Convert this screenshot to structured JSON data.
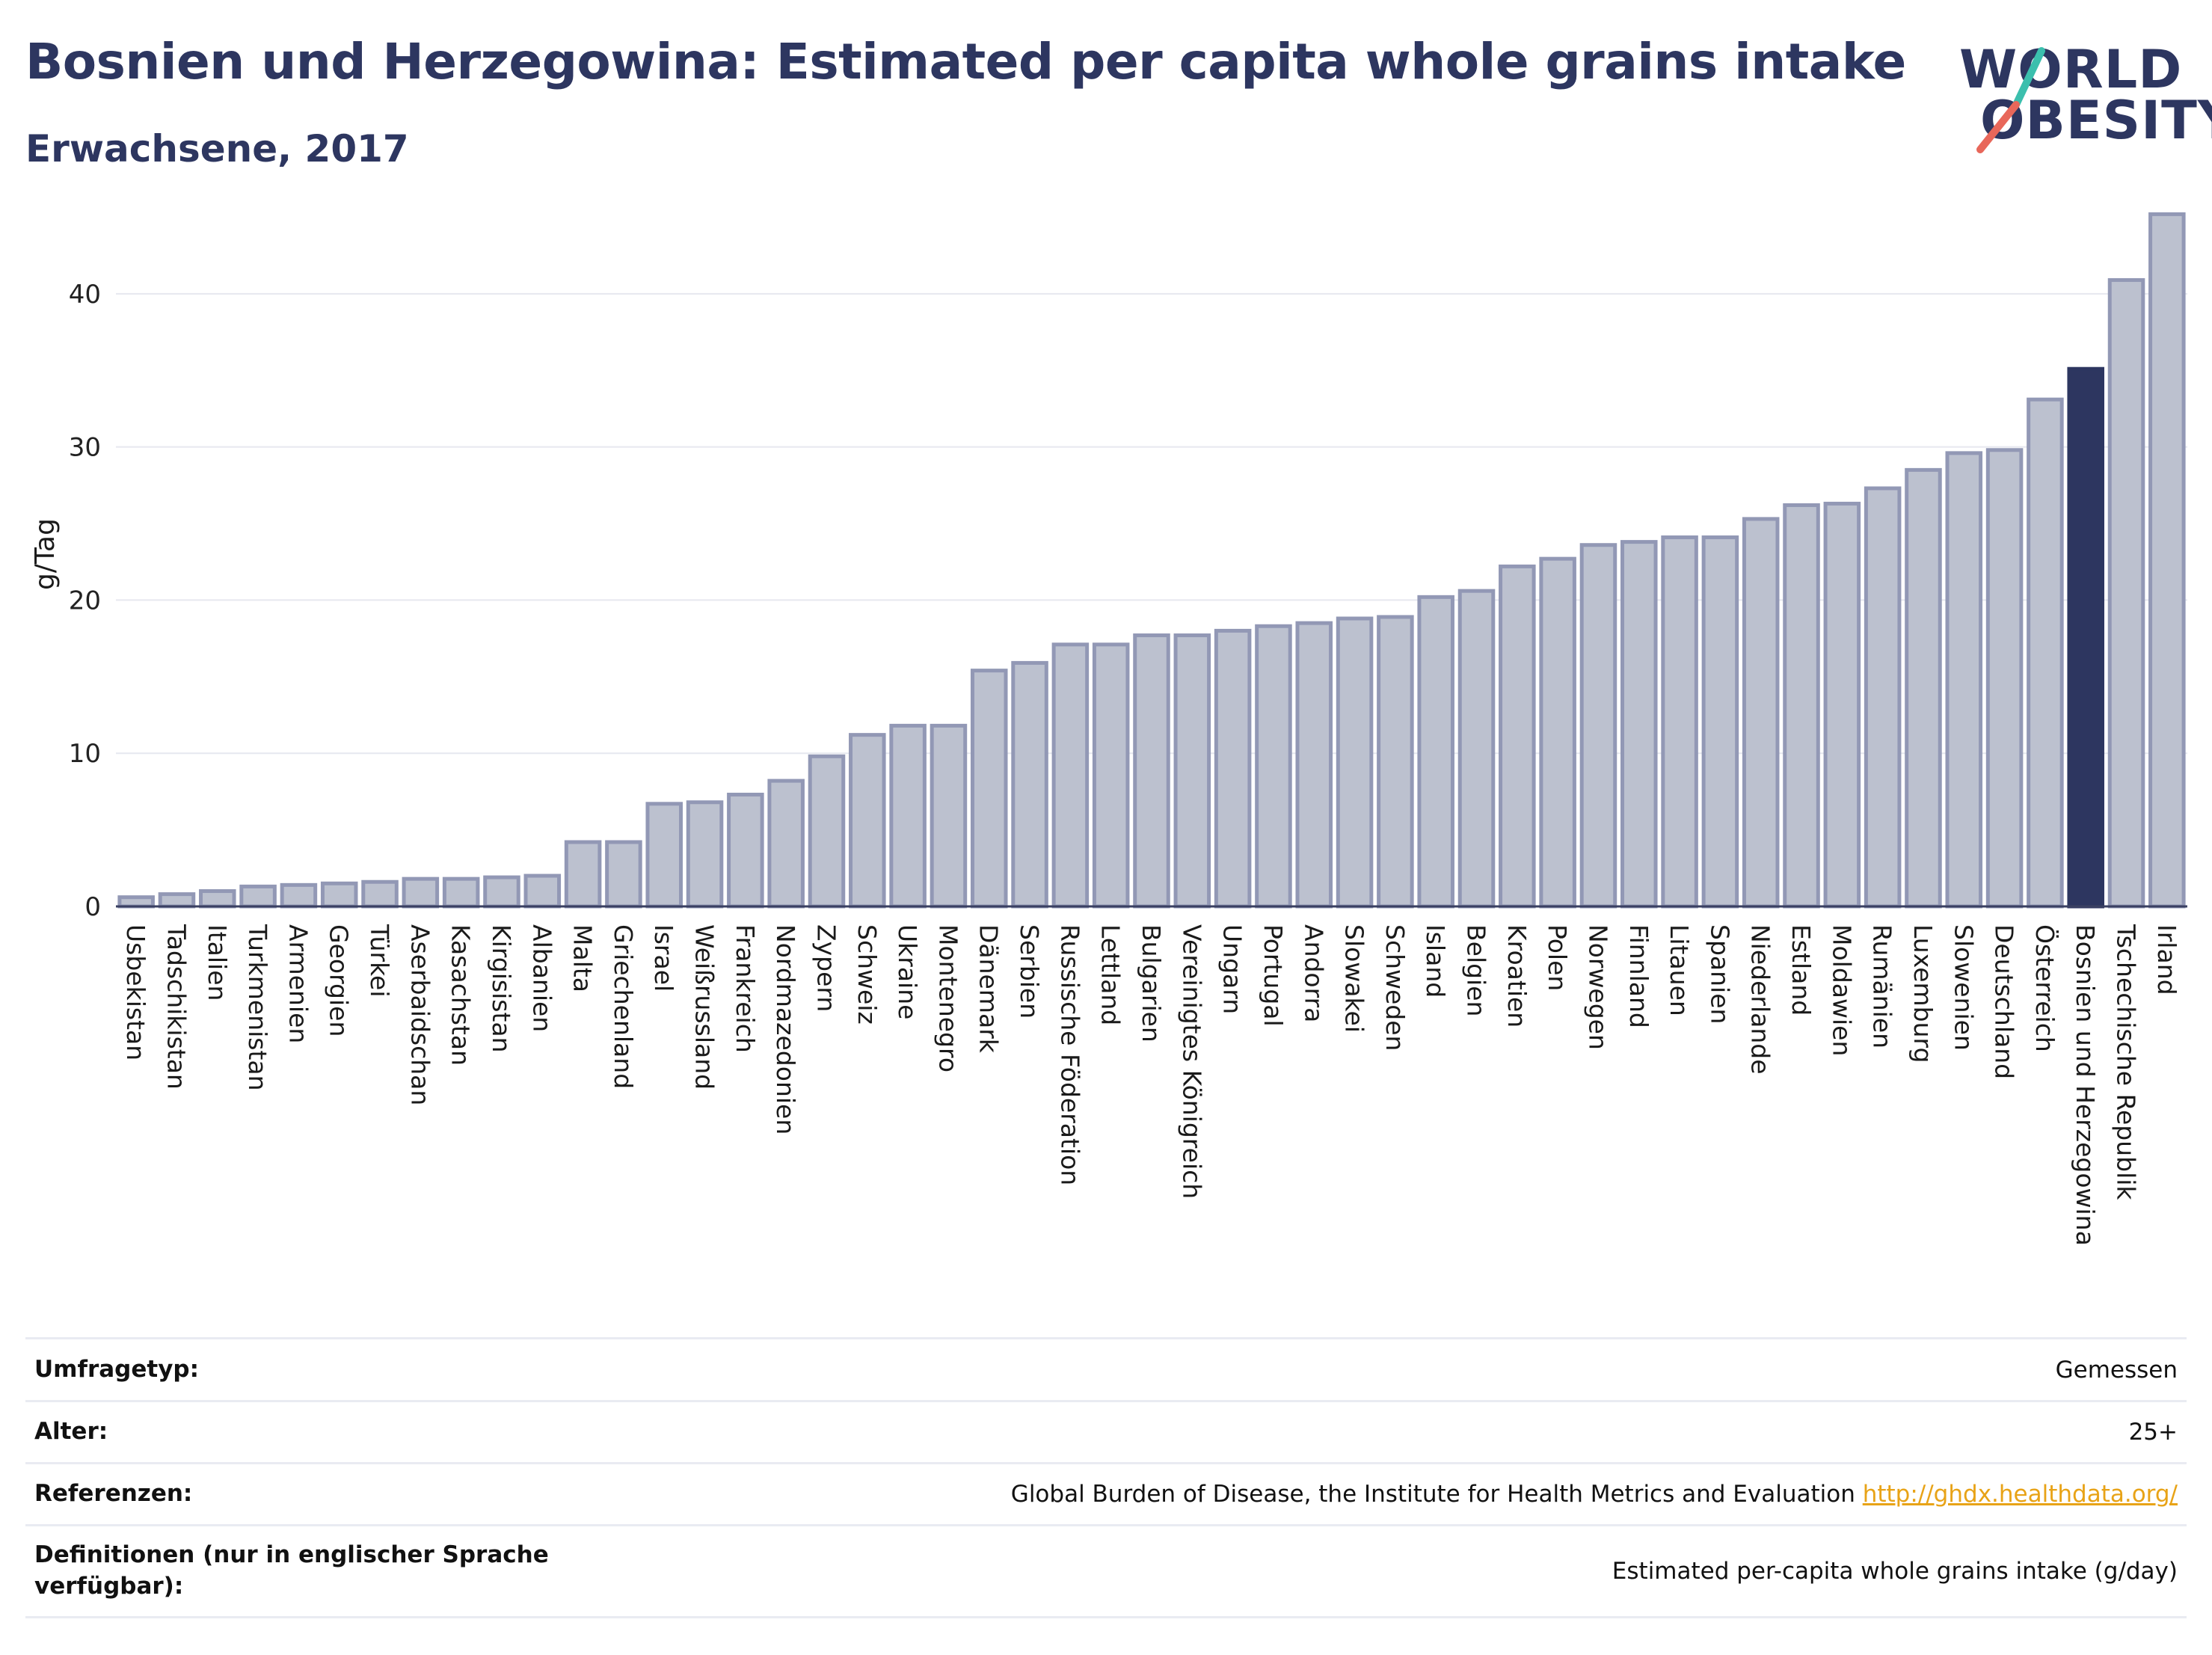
{
  "header": {
    "title": "Bosnien und Herzegowina: Estimated per capita whole grains intake",
    "subtitle": "Erwachsene, 2017"
  },
  "logo": {
    "line1": "WORLD",
    "line2": "OBESITY",
    "accent_teal": "#3bbfad",
    "accent_red": "#e8675a"
  },
  "chart_data": {
    "type": "bar",
    "ylabel": "g/Tag",
    "ylim": [
      0,
      46
    ],
    "yticks": [
      0,
      10,
      20,
      30,
      40
    ],
    "grid": true,
    "highlight": "Bosnien und Herzegowina",
    "colors": {
      "bar": "#bcc1cf",
      "bar_border": "#9298b5",
      "highlight": "#2d3660",
      "grid": "#e6e8ef"
    },
    "categories": [
      "Usbekistan",
      "Tadschikistan",
      "Italien",
      "Turkmenistan",
      "Armenien",
      "Georgien",
      "Türkei",
      "Aserbaidschan",
      "Kasachstan",
      "Kirgisistan",
      "Albanien",
      "Malta",
      "Griechenland",
      "Israel",
      "Weißrussland",
      "Frankreich",
      "Nordmazedonien",
      "Zypern",
      "Schweiz",
      "Ukraine",
      "Montenegro",
      "Dänemark",
      "Serbien",
      "Russische Föderation",
      "Lettland",
      "Bulgarien",
      "Vereinigtes Königreich",
      "Ungarn",
      "Portugal",
      "Andorra",
      "Slowakei",
      "Schweden",
      "Island",
      "Belgien",
      "Kroatien",
      "Polen",
      "Norwegen",
      "Finnland",
      "Litauen",
      "Spanien",
      "Niederlande",
      "Estland",
      "Moldawien",
      "Rumänien",
      "Luxemburg",
      "Slowenien",
      "Deutschland",
      "Österreich",
      "Bosnien und Herzegowina",
      "Tschechische Republik",
      "Irland"
    ],
    "values": [
      0.6,
      0.8,
      1.0,
      1.3,
      1.4,
      1.5,
      1.6,
      1.8,
      1.8,
      1.9,
      2.0,
      4.2,
      4.2,
      6.7,
      6.8,
      7.3,
      8.2,
      9.8,
      11.2,
      11.8,
      11.8,
      15.4,
      15.9,
      17.1,
      17.1,
      17.7,
      17.7,
      18.0,
      18.3,
      18.5,
      18.8,
      18.9,
      20.2,
      20.6,
      22.2,
      22.7,
      23.6,
      23.8,
      24.1,
      24.1,
      25.3,
      26.2,
      26.3,
      27.3,
      28.5,
      29.6,
      29.8,
      33.1,
      35.1,
      40.9,
      45.2
    ]
  },
  "info": [
    {
      "label": "Umfragetyp:",
      "value": "Gemessen"
    },
    {
      "label": "Alter:",
      "value": "25+"
    },
    {
      "label": "Referenzen:",
      "value": "Global Burden of Disease, the Institute for Health Metrics and Evaluation",
      "link": "http://ghdx.healthdata.org/"
    },
    {
      "label": "Definitionen (nur in englischer Sprache verfügbar):",
      "value": "Estimated per-capita whole grains intake (g/day)"
    }
  ]
}
